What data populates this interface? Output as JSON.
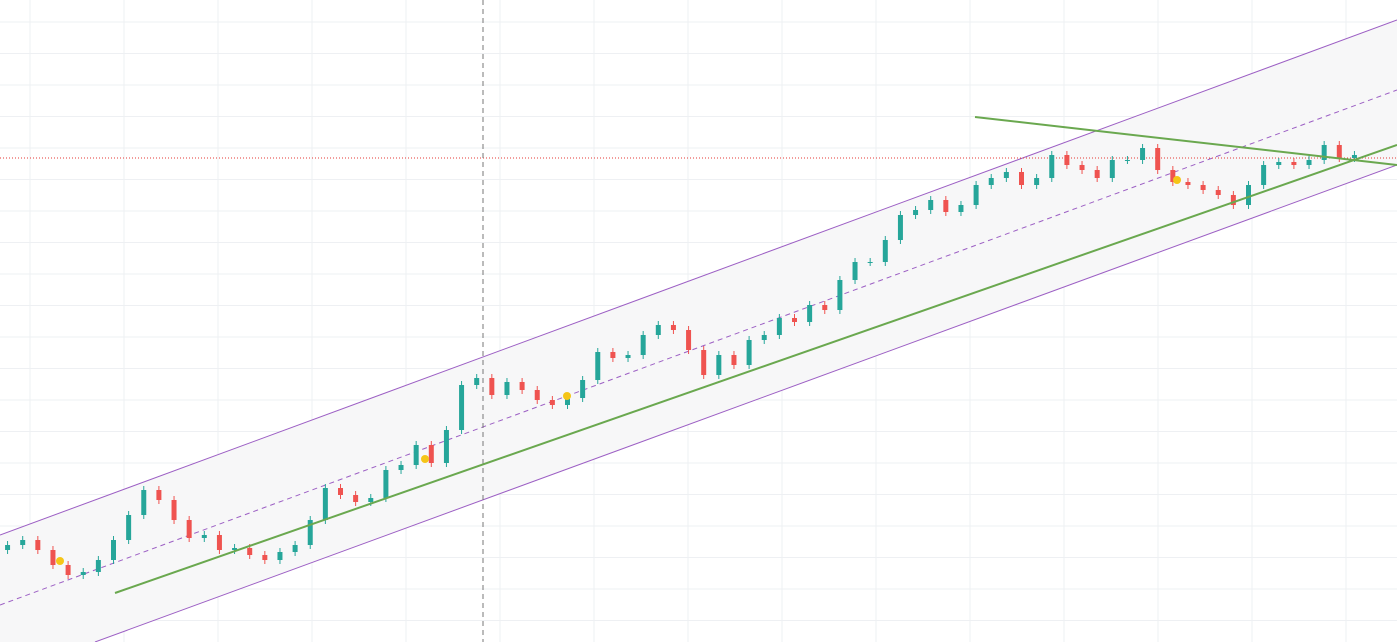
{
  "chart_data": {
    "type": "candlestick",
    "categories": [
      null,
      null,
      null,
      null,
      null,
      null,
      null,
      null,
      null,
      null,
      null,
      null,
      null,
      null,
      null,
      null,
      null,
      null,
      null,
      null,
      null,
      null,
      null,
      null,
      null,
      null,
      null,
      null,
      null,
      null,
      null,
      null,
      null,
      null,
      null,
      null,
      null,
      null,
      null,
      null,
      null,
      null,
      null,
      null,
      null,
      null,
      null,
      null,
      null,
      null,
      null,
      null,
      null,
      null,
      null,
      null,
      null,
      null,
      null,
      null,
      null,
      null,
      null,
      null,
      null,
      null,
      null,
      null,
      null,
      null,
      null,
      null,
      null,
      null,
      null,
      null,
      null,
      null,
      null,
      null,
      null,
      null,
      null,
      null,
      null,
      null,
      null,
      null,
      null,
      null
    ],
    "open": [
      92,
      97,
      102,
      92,
      77,
      67,
      70,
      82,
      102,
      127,
      152,
      142,
      122,
      104,
      107,
      92,
      94,
      87,
      82,
      90,
      97,
      122,
      154,
      147,
      140,
      144,
      172,
      177,
      197,
      179,
      212,
      257,
      264,
      247,
      260,
      252,
      242,
      237,
      244,
      262,
      290,
      284,
      287,
      307,
      317,
      312,
      292,
      267,
      287,
      277,
      302,
      307,
      324,
      320,
      337,
      332,
      362,
      380,
      380,
      402,
      427,
      432,
      442,
      430,
      437,
      457,
      464,
      470,
      457,
      464,
      487,
      477,
      472,
      464,
      482,
      482,
      494,
      472,
      460,
      457,
      452,
      447,
      437,
      457,
      477,
      480,
      477,
      482,
      497,
      484
    ],
    "high": [
      101,
      106,
      106,
      96,
      81,
      74,
      86,
      106,
      131,
      156,
      156,
      146,
      126,
      111,
      111,
      98,
      98,
      91,
      94,
      101,
      126,
      158,
      158,
      151,
      148,
      176,
      181,
      201,
      201,
      216,
      261,
      268,
      268,
      264,
      264,
      256,
      246,
      248,
      266,
      294,
      294,
      291,
      311,
      321,
      321,
      316,
      296,
      291,
      291,
      306,
      311,
      328,
      328,
      341,
      341,
      366,
      384,
      384,
      406,
      431,
      436,
      446,
      446,
      441,
      461,
      468,
      474,
      474,
      468,
      491,
      491,
      481,
      476,
      486,
      486,
      498,
      498,
      476,
      464,
      461,
      456,
      451,
      461,
      481,
      484,
      484,
      486,
      501,
      501,
      491
    ],
    "low": [
      88,
      93,
      88,
      73,
      63,
      63,
      66,
      78,
      98,
      123,
      138,
      118,
      100,
      100,
      88,
      88,
      83,
      78,
      78,
      86,
      93,
      118,
      143,
      136,
      136,
      140,
      168,
      173,
      175,
      175,
      208,
      253,
      243,
      243,
      248,
      238,
      233,
      233,
      240,
      258,
      280,
      280,
      283,
      303,
      308,
      288,
      263,
      263,
      273,
      273,
      298,
      303,
      316,
      316,
      328,
      328,
      358,
      376,
      376,
      398,
      423,
      428,
      426,
      426,
      433,
      453,
      460,
      453,
      453,
      460,
      473,
      468,
      460,
      460,
      478,
      478,
      468,
      456,
      453,
      448,
      443,
      433,
      433,
      453,
      473,
      473,
      473,
      478,
      480,
      480
    ],
    "close": [
      97,
      102,
      92,
      77,
      67,
      70,
      82,
      102,
      127,
      152,
      142,
      122,
      104,
      107,
      92,
      94,
      87,
      82,
      90,
      97,
      122,
      154,
      147,
      140,
      144,
      172,
      177,
      197,
      179,
      212,
      257,
      264,
      247,
      260,
      252,
      242,
      237,
      244,
      262,
      290,
      284,
      287,
      307,
      317,
      312,
      292,
      267,
      287,
      277,
      302,
      307,
      324,
      320,
      337,
      332,
      362,
      380,
      380,
      402,
      427,
      432,
      442,
      430,
      437,
      457,
      464,
      470,
      457,
      464,
      487,
      477,
      472,
      464,
      482,
      482,
      494,
      472,
      460,
      457,
      452,
      447,
      437,
      457,
      477,
      480,
      477,
      482,
      497,
      484,
      487
    ],
    "up_color": "#26a69a",
    "down_color": "#ef5350",
    "ylim": [
      0,
      642
    ],
    "grid": true
  }
}
